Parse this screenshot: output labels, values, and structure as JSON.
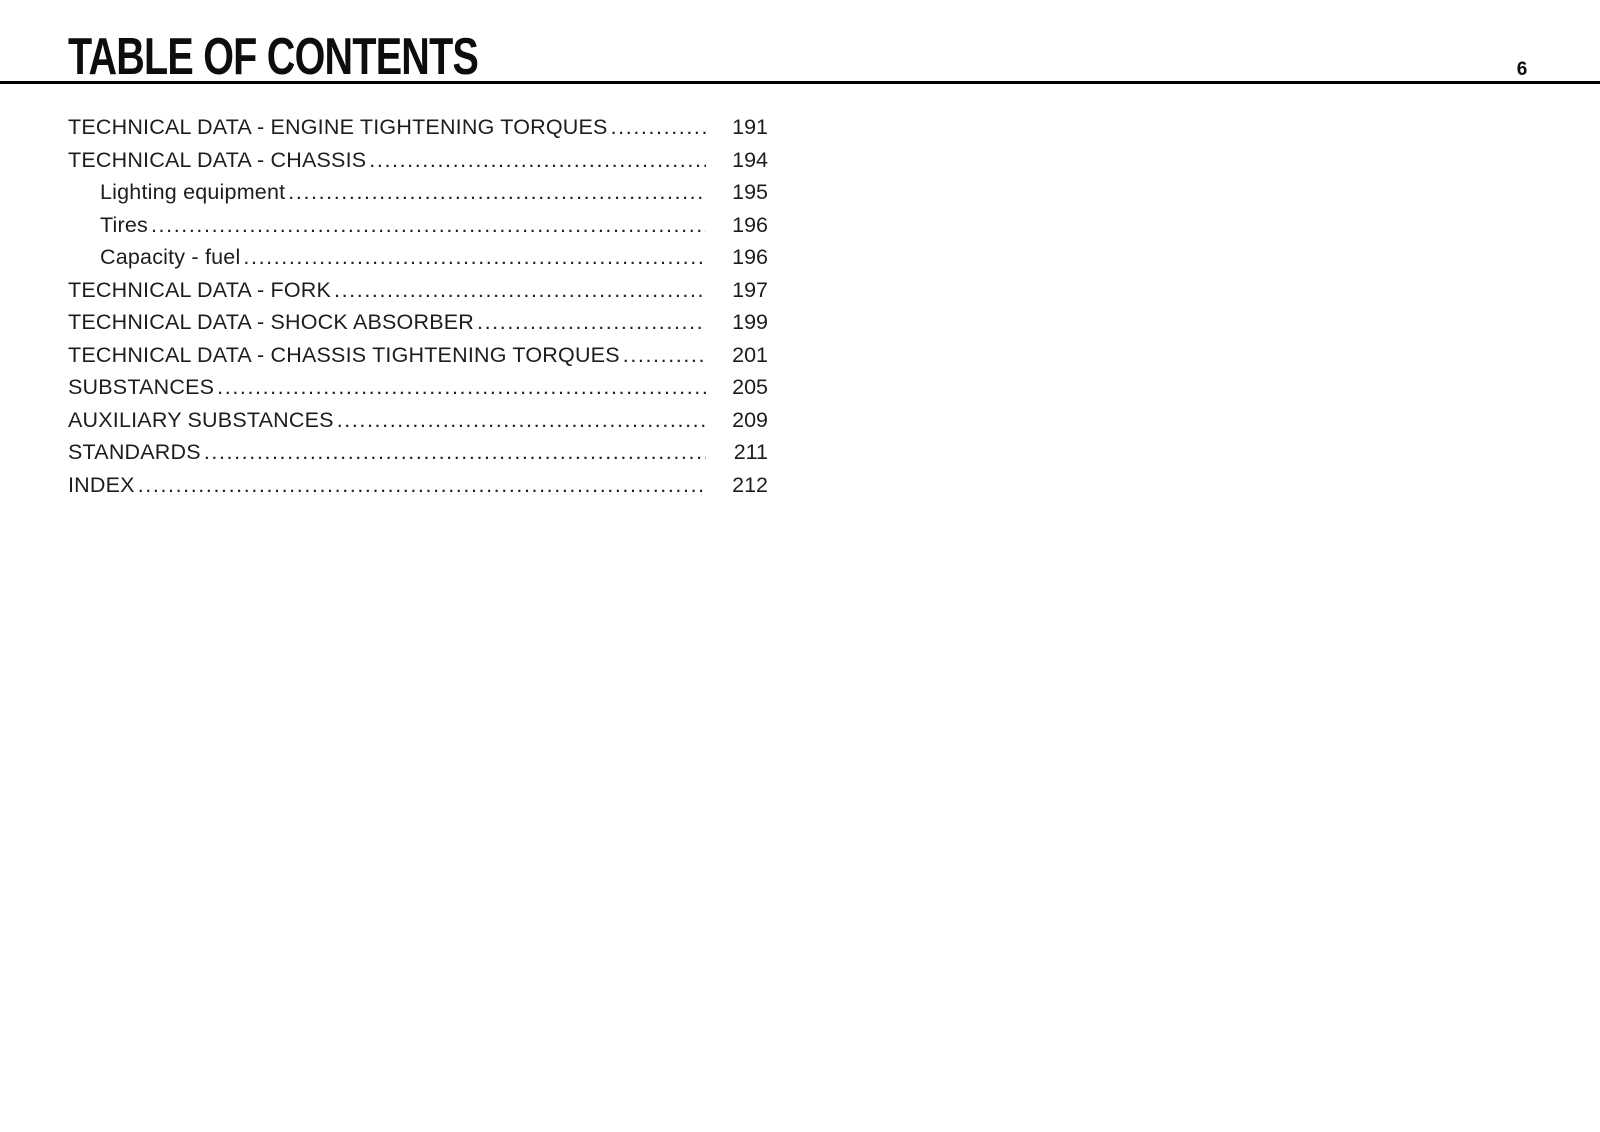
{
  "page": {
    "title": "TABLE OF CONTENTS",
    "page_number": "6"
  },
  "toc": {
    "items": [
      {
        "label": "TECHNICAL DATA - ENGINE TIGHTENING TORQUES",
        "page": "191",
        "indent": false
      },
      {
        "label": "TECHNICAL DATA - CHASSIS",
        "page": "194",
        "indent": false
      },
      {
        "label": "Lighting equipment",
        "page": "195",
        "indent": true
      },
      {
        "label": "Tires",
        "page": "196",
        "indent": true
      },
      {
        "label": "Capacity - fuel",
        "page": "196",
        "indent": true
      },
      {
        "label": "TECHNICAL DATA - FORK",
        "page": "197",
        "indent": false
      },
      {
        "label": "TECHNICAL DATA - SHOCK ABSORBER",
        "page": "199",
        "indent": false
      },
      {
        "label": "TECHNICAL DATA - CHASSIS TIGHTENING TORQUES",
        "page": "201",
        "indent": false
      },
      {
        "label": "SUBSTANCES",
        "page": "205",
        "indent": false
      },
      {
        "label": "AUXILIARY SUBSTANCES",
        "page": "209",
        "indent": false
      },
      {
        "label": "STANDARDS",
        "page": "211",
        "indent": false
      },
      {
        "label": "INDEX",
        "page": "212",
        "indent": false
      }
    ]
  },
  "colors": {
    "text": "#1d1d1d",
    "title": "#0d0d0d",
    "rule": "#000000",
    "background": "#ffffff"
  }
}
